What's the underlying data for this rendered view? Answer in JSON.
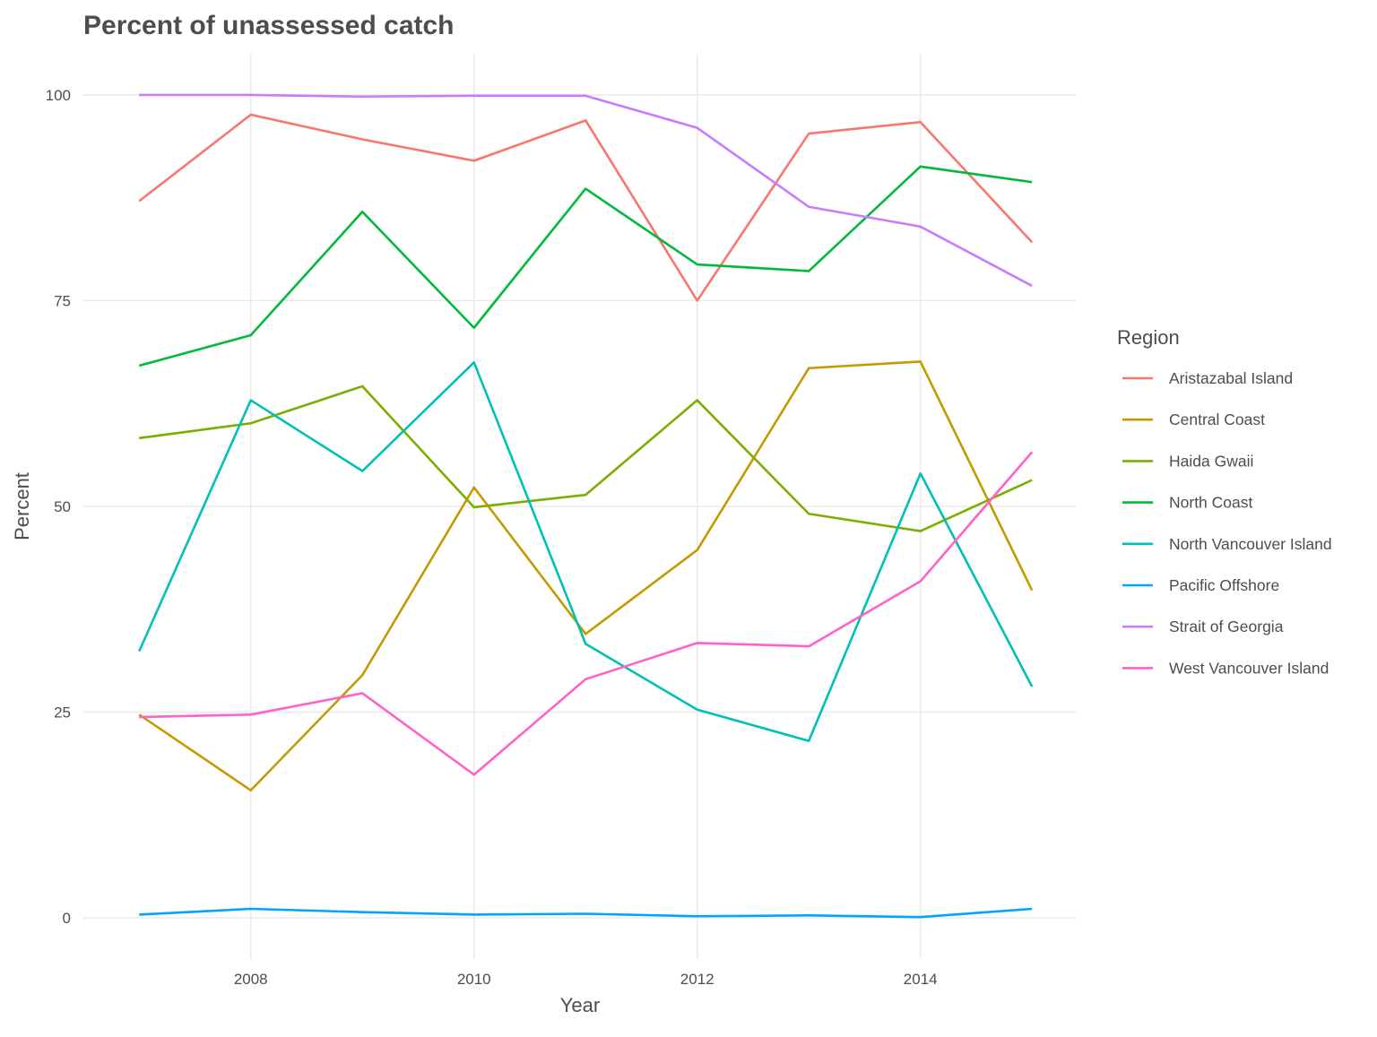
{
  "chart_data": {
    "type": "line",
    "title": "Percent of unassessed catch",
    "xlabel": "Year",
    "ylabel": "Percent",
    "x": [
      2007,
      2008,
      2009,
      2010,
      2011,
      2012,
      2013,
      2014,
      2015
    ],
    "xlim": [
      2006.5,
      2015.4
    ],
    "ylim": [
      -5,
      105
    ],
    "x_ticks": [
      2008,
      2010,
      2012,
      2014
    ],
    "y_ticks": [
      0,
      25,
      50,
      75,
      100
    ],
    "x_tick_labels": [
      "2008",
      "2010",
      "2012",
      "2014"
    ],
    "y_tick_labels": [
      "0",
      "25",
      "50",
      "75",
      "100"
    ],
    "grid": true,
    "legend_title": "Region",
    "legend_position": "right",
    "series": [
      {
        "name": "Aristazabal Island",
        "color": "#F8766D",
        "values": [
          87.1,
          97.6,
          94.6,
          92.0,
          96.9,
          75.0,
          95.3,
          96.7,
          82.1
        ]
      },
      {
        "name": "Central Coast",
        "color": "#C49A00",
        "values": [
          24.7,
          15.5,
          29.5,
          52.3,
          34.5,
          44.7,
          66.8,
          67.6,
          39.8
        ]
      },
      {
        "name": "Haida Gwaii",
        "color": "#7CAE00",
        "values": [
          58.3,
          60.1,
          64.6,
          49.9,
          51.4,
          62.9,
          49.1,
          47.0,
          53.2
        ]
      },
      {
        "name": "North Coast",
        "color": "#00BA38",
        "values": [
          67.1,
          70.8,
          85.8,
          71.7,
          88.6,
          79.4,
          78.6,
          91.3,
          89.4
        ]
      },
      {
        "name": "North Vancouver Island",
        "color": "#00C0B8",
        "values": [
          32.4,
          62.9,
          54.3,
          67.5,
          33.3,
          25.3,
          21.5,
          54.0,
          28.1
        ]
      },
      {
        "name": "Pacific Offshore",
        "color": "#00A5FF",
        "values": [
          0.4,
          1.1,
          0.7,
          0.4,
          0.5,
          0.2,
          0.3,
          0.1,
          1.1
        ]
      },
      {
        "name": "Strait of Georgia",
        "color": "#C77CFF",
        "values": [
          100.0,
          100.0,
          99.8,
          99.9,
          99.9,
          96.0,
          86.4,
          84.0,
          76.8
        ]
      },
      {
        "name": "West Vancouver Island",
        "color": "#FF61C9",
        "values": [
          24.4,
          24.7,
          27.3,
          17.4,
          29.0,
          33.4,
          33.0,
          40.9,
          56.6
        ]
      }
    ]
  }
}
